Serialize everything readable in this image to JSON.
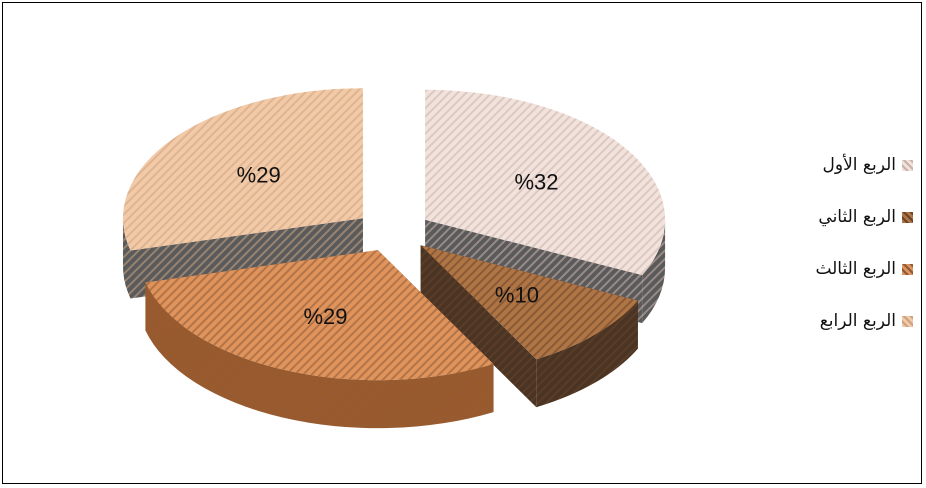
{
  "chart_data": {
    "type": "pie",
    "title": "",
    "legend_position": "right",
    "slices": [
      {
        "name": "الربع الأول",
        "value": 32,
        "label": "%32",
        "color": "#f2e2dc",
        "dark": "#5a5a5a",
        "stripe": "#c9b2aa"
      },
      {
        "name": "الربع الثاني",
        "value": 10,
        "label": "%10",
        "color": "#b07545",
        "dark": "#4a3424",
        "stripe": "#6a4428"
      },
      {
        "name": "الربع الثالث",
        "value": 29,
        "label": "%29",
        "color": "#e0935a",
        "dark": "#9a5a2c",
        "stripe": "#8c5a3a"
      },
      {
        "name": "الربع الرابع",
        "value": 29,
        "label": "%29",
        "color": "#f3c9a6",
        "dark": "#5a5a5a",
        "stripe": "#c8a385"
      }
    ]
  }
}
